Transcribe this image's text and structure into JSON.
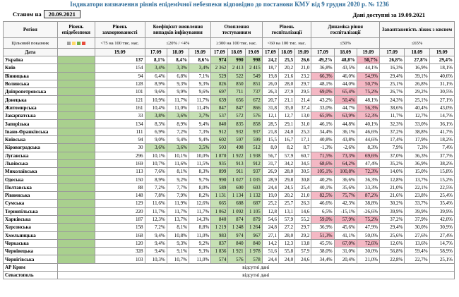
{
  "header": {
    "title": "Індикатори визначення рівнів епідемічної небезпеки відповідно до постанови КМУ від 9 грудня 2020 р. № 1236",
    "as_of_label": "Станом на",
    "as_of_date": "20.09.2021",
    "data_available": "Дані доступні за 19.09.2021"
  },
  "table": {
    "columns": [
      "Регіон",
      "Рівень епідебезпеки",
      "Рівень захворюваності",
      "Коефіцієнт виявлення випадків інфікування",
      "Охоплення тестуванням",
      "Рівень госпіталізації",
      "Динаміка рівня госпіталізації",
      "Завантаженість ліжок з киснем"
    ],
    "target_label": "Цільовий показник",
    "targets": [
      "<75 на 100 тис. нас.",
      "≤20% / <4%",
      "≥300 на 100 тис. нас.",
      "<60 на 100 тис. нас.",
      "≤50%",
      "≤65%"
    ],
    "date_label": "Дата",
    "incidence_date": "19.09",
    "dates": [
      "17.09",
      "18.09",
      "19.09"
    ],
    "level_color": "#a9d08e",
    "rows": [
      {
        "region": "Україна",
        "values": [
          "137",
          "8,1%",
          "8,4%",
          "8,6%",
          "974",
          "990",
          "998",
          "24,2",
          "25,5",
          "26,6",
          "49,2%",
          "48,8%",
          "50,7%",
          "26,8%",
          "27,8%",
          "29,4%"
        ],
        "fills": [
          null,
          null,
          null,
          null,
          "#c6e0b4",
          "#c6e0b4",
          "#c6e0b4",
          null,
          null,
          null,
          null,
          null,
          "#f4b8c4",
          null,
          null,
          null
        ]
      },
      {
        "region": "Київ",
        "values": [
          "154",
          "3,4%",
          "3,3%",
          "3,4%",
          "2 362",
          "2 413",
          "2 415",
          "18,7",
          "20,2",
          "21,0",
          "36,8%",
          "43,5%",
          "44,1%",
          "16,3%",
          "16,9%",
          "18,1%"
        ],
        "fills": [
          null,
          "#c6e0b4",
          "#c6e0b4",
          "#c6e0b4",
          "#c6e0b4",
          "#c6e0b4",
          "#c6e0b4",
          null,
          null,
          null,
          null,
          null,
          null,
          null,
          null,
          null
        ]
      },
      {
        "region": "Вінницька",
        "values": [
          "94",
          "6,4%",
          "6,8%",
          "7,1%",
          "529",
          "522",
          "549",
          "19,8",
          "21,6",
          "23,2",
          "66,3%",
          "46,0%",
          "54,9%",
          "29,4%",
          "39,1%",
          "40,6%"
        ],
        "fills": [
          null,
          null,
          null,
          null,
          "#c6e0b4",
          "#c6e0b4",
          "#c6e0b4",
          null,
          null,
          null,
          "#f4b8c4",
          null,
          "#f4b8c4",
          null,
          null,
          null
        ]
      },
      {
        "region": "Волинська",
        "values": [
          "128",
          "8,9%",
          "9,3%",
          "9,3%",
          "826",
          "850",
          "851",
          "26,0",
          "28,0",
          "29,7",
          "48,1%",
          "44,0%",
          "50,7%",
          "25,1%",
          "26,8%",
          "31,1%"
        ],
        "fills": [
          null,
          null,
          null,
          null,
          "#c6e0b4",
          "#c6e0b4",
          "#c6e0b4",
          null,
          null,
          null,
          null,
          null,
          "#f4b8c4",
          null,
          null,
          null
        ]
      },
      {
        "region": "Дніпропетровська",
        "values": [
          "101",
          "9,6%",
          "9,9%",
          "9,6%",
          "697",
          "711",
          "737",
          "26,3",
          "27,9",
          "29,5",
          "69,0%",
          "65,4%",
          "75,2%",
          "26,7%",
          "29,2%",
          "30,5%"
        ],
        "fills": [
          null,
          null,
          null,
          null,
          "#c6e0b4",
          "#c6e0b4",
          "#c6e0b4",
          null,
          null,
          null,
          "#f4b8c4",
          "#f4b8c4",
          "#f4b8c4",
          null,
          null,
          null
        ]
      },
      {
        "region": "Донецька",
        "values": [
          "121",
          "10,9%",
          "11,7%",
          "11,7%",
          "639",
          "656",
          "672",
          "20,7",
          "21,1",
          "21,4",
          "43,2%",
          "50,4%",
          "48,1%",
          "24,3%",
          "25,1%",
          "27,1%"
        ],
        "fills": [
          null,
          null,
          null,
          null,
          "#c6e0b4",
          "#c6e0b4",
          "#c6e0b4",
          null,
          null,
          null,
          null,
          "#f4b8c4",
          null,
          null,
          null,
          null
        ]
      },
      {
        "region": "Житомирська",
        "values": [
          "161",
          "10,4%",
          "11,0%",
          "11,4%",
          "847",
          "847",
          "866",
          "31,8",
          "35,0",
          "37,4",
          "33,0%",
          "44,7%",
          "56,3%",
          "38,6%",
          "40,4%",
          "43,0%"
        ],
        "fills": [
          null,
          null,
          null,
          null,
          "#c6e0b4",
          "#c6e0b4",
          "#c6e0b4",
          null,
          null,
          null,
          null,
          null,
          "#f4b8c4",
          null,
          null,
          null
        ]
      },
      {
        "region": "Закарпатська",
        "values": [
          "33",
          "3,8%",
          "3,6%",
          "3,7%",
          "537",
          "572",
          "576",
          "12,1",
          "12,7",
          "13,0",
          "65,9%",
          "63,9%",
          "52,3%",
          "11,7%",
          "12,7%",
          "14,7%"
        ],
        "fills": [
          null,
          "#c6e0b4",
          "#c6e0b4",
          "#c6e0b4",
          "#c6e0b4",
          "#c6e0b4",
          "#c6e0b4",
          null,
          null,
          null,
          "#f4b8c4",
          "#f4b8c4",
          "#f4b8c4",
          null,
          null,
          null
        ]
      },
      {
        "region": "Запорізька",
        "values": [
          "134",
          "8,3%",
          "8,9%",
          "9,4%",
          "840",
          "835",
          "858",
          "28,5",
          "29,1",
          "31,0",
          "46,1%",
          "44,8%",
          "40,1%",
          "32,3%",
          "33,0%",
          "36,1%"
        ],
        "fills": [
          null,
          null,
          null,
          null,
          "#c6e0b4",
          "#c6e0b4",
          "#c6e0b4",
          null,
          null,
          null,
          null,
          null,
          null,
          null,
          null,
          null
        ]
      },
      {
        "region": "Івано-Франківська",
        "values": [
          "111",
          "6,9%",
          "7,2%",
          "7,3%",
          "912",
          "932",
          "937",
          "21,8",
          "24,0",
          "25,3",
          "34,4%",
          "36,1%",
          "46,6%",
          "37,2%",
          "38,8%",
          "41,7%"
        ],
        "fills": [
          null,
          null,
          null,
          null,
          "#c6e0b4",
          "#c6e0b4",
          "#c6e0b4",
          null,
          null,
          null,
          null,
          null,
          null,
          null,
          null,
          null
        ]
      },
      {
        "region": "Київська",
        "values": [
          "94",
          "9,0%",
          "9,4%",
          "9,4%",
          "602",
          "597",
          "599",
          "15,5",
          "16,7",
          "17,1",
          "40,8%",
          "43,8%",
          "44,6%",
          "17,4%",
          "17,9%",
          "18,2%"
        ],
        "fills": [
          null,
          null,
          null,
          null,
          "#c6e0b4",
          "#c6e0b4",
          "#c6e0b4",
          null,
          null,
          null,
          null,
          null,
          null,
          null,
          null,
          null
        ]
      },
      {
        "region": "Кіровоградська",
        "values": [
          "30",
          "3,6%",
          "3,6%",
          "3,5%",
          "503",
          "498",
          "512",
          "8,0",
          "8,2",
          "8,7",
          "-1,3%",
          "-2,6%",
          "8,3%",
          "7,9%",
          "7,3%",
          "7,4%"
        ],
        "fills": [
          null,
          "#c6e0b4",
          "#c6e0b4",
          "#c6e0b4",
          "#c6e0b4",
          "#c6e0b4",
          "#c6e0b4",
          null,
          null,
          null,
          null,
          null,
          null,
          null,
          null,
          null
        ]
      },
      {
        "region": "Луганська",
        "values": [
          "296",
          "10,1%",
          "10,1%",
          "10,0%",
          "1 870",
          "1 922",
          "1 938",
          "56,7",
          "57,9",
          "60,7",
          "71,5%",
          "73,3%",
          "69,6%",
          "37,0%",
          "36,3%",
          "37,7%"
        ],
        "fills": [
          null,
          null,
          null,
          null,
          "#c6e0b4",
          "#c6e0b4",
          "#c6e0b4",
          null,
          null,
          null,
          "#f4b8c4",
          "#f4b8c4",
          "#f4b8c4",
          null,
          null,
          null
        ]
      },
      {
        "region": "Львівська",
        "values": [
          "169",
          "10,7%",
          "11,6%",
          "11,5%",
          "935",
          "913",
          "912",
          "31,7",
          "34,2",
          "34,5",
          "68,6%",
          "64,2%",
          "47,4%",
          "35,2%",
          "36,9%",
          "38,2%"
        ],
        "fills": [
          null,
          null,
          null,
          null,
          "#c6e0b4",
          "#c6e0b4",
          "#c6e0b4",
          null,
          null,
          null,
          "#f4b8c4",
          "#f4b8c4",
          null,
          null,
          null,
          null
        ]
      },
      {
        "region": "Миколаївська",
        "values": [
          "113",
          "7,6%",
          "8,1%",
          "8,3%",
          "899",
          "911",
          "937",
          "26,9",
          "28,0",
          "30,5",
          "105,1%",
          "100,8%",
          "72,3%",
          "14,0%",
          "15,0%",
          "15,8%"
        ],
        "fills": [
          null,
          null,
          null,
          null,
          "#c6e0b4",
          "#c6e0b4",
          "#c6e0b4",
          null,
          null,
          null,
          "#f4b8c4",
          "#f4b8c4",
          "#f4b8c4",
          null,
          null,
          null
        ]
      },
      {
        "region": "Одеська",
        "values": [
          "150",
          "8,9%",
          "9,2%",
          "9,7%",
          "990",
          "1 027",
          "1 035",
          "28,9",
          "29,8",
          "30,8",
          "40,2%",
          "36,6%",
          "36,3%",
          "12,8%",
          "13,7%",
          "15,2%"
        ],
        "fills": [
          null,
          null,
          null,
          null,
          "#c6e0b4",
          "#c6e0b4",
          "#c6e0b4",
          null,
          null,
          null,
          null,
          null,
          null,
          null,
          null,
          null
        ]
      },
      {
        "region": "Полтавська",
        "values": [
          "88",
          "7,2%",
          "7,7%",
          "8,0%",
          "589",
          "600",
          "603",
          "24,4",
          "24,5",
          "25,4",
          "40,1%",
          "35,6%",
          "33,3%",
          "21,0%",
          "22,1%",
          "22,5%"
        ],
        "fills": [
          null,
          null,
          null,
          null,
          "#c6e0b4",
          "#c6e0b4",
          "#c6e0b4",
          null,
          null,
          null,
          null,
          null,
          null,
          null,
          null,
          null
        ]
      },
      {
        "region": "Рівненська",
        "values": [
          "148",
          "7,8%",
          "7,9%",
          "8,2%",
          "1 131",
          "1 134",
          "1 132",
          "19,0",
          "20,2",
          "21,0",
          "82,5%",
          "75,7%",
          "87,2%",
          "21,6%",
          "23,8%",
          "25,4%"
        ],
        "fills": [
          null,
          null,
          null,
          null,
          "#c6e0b4",
          "#c6e0b4",
          "#c6e0b4",
          null,
          null,
          null,
          "#f4b8c4",
          "#f4b8c4",
          "#f4b8c4",
          null,
          null,
          null
        ]
      },
      {
        "region": "Сумська",
        "values": [
          "129",
          "11,6%",
          "11,9%",
          "12,6%",
          "665",
          "688",
          "687",
          "25,2",
          "25,7",
          "26,3",
          "46,6%",
          "42,3%",
          "38,8%",
          "30,2%",
          "33,7%",
          "35,4%"
        ],
        "fills": [
          null,
          null,
          null,
          null,
          "#c6e0b4",
          "#c6e0b4",
          "#c6e0b4",
          null,
          null,
          null,
          null,
          null,
          null,
          null,
          null,
          null
        ]
      },
      {
        "region": "Тернопільська",
        "values": [
          "220",
          "11,7%",
          "11,7%",
          "11,7%",
          "1 062",
          "1 092",
          "1 105",
          "12,8",
          "13,1",
          "14,6",
          "6,5%",
          "-15,1%",
          "-26,6%",
          "39,9%",
          "39,9%",
          "39,9%"
        ],
        "fills": [
          null,
          null,
          null,
          null,
          "#c6e0b4",
          "#c6e0b4",
          "#c6e0b4",
          null,
          null,
          null,
          null,
          null,
          null,
          null,
          null,
          null
        ]
      },
      {
        "region": "Харківська",
        "values": [
          "187",
          "12,3%",
          "13,7%",
          "14,3%",
          "840",
          "874",
          "879",
          "54,6",
          "57,9",
          "55,2",
          "59,0%",
          "57,9%",
          "75,2%",
          "37,2%",
          "37,9%",
          "42,0%"
        ],
        "fills": [
          null,
          null,
          null,
          null,
          "#c6e0b4",
          "#c6e0b4",
          "#c6e0b4",
          null,
          null,
          null,
          "#f4b8c4",
          "#f4b8c4",
          "#f4b8c4",
          null,
          null,
          null
        ]
      },
      {
        "region": "Херсонська",
        "values": [
          "158",
          "7,2%",
          "8,1%",
          "8,8%",
          "1 219",
          "1 248",
          "1 264",
          "24,8",
          "27,2",
          "29,7",
          "36,9%",
          "45,6%",
          "47,9%",
          "29,4%",
          "30,0%",
          "30,9%"
        ],
        "fills": [
          null,
          null,
          null,
          null,
          "#c6e0b4",
          "#c6e0b4",
          "#c6e0b4",
          null,
          null,
          null,
          null,
          null,
          null,
          null,
          null,
          null
        ]
      },
      {
        "region": "Хмельницька",
        "values": [
          "168",
          "9,4%",
          "10,8%",
          "11,0%",
          "983",
          "974",
          "967",
          "27,1",
          "28,0",
          "29,2",
          "51,3%",
          "41,1%",
          "50,0%",
          "25,6%",
          "27,6%",
          "27,4%"
        ],
        "fills": [
          null,
          null,
          null,
          null,
          "#c6e0b4",
          "#c6e0b4",
          "#c6e0b4",
          null,
          null,
          null,
          "#f4b8c4",
          null,
          null,
          null,
          null,
          null
        ]
      },
      {
        "region": "Черкаська",
        "values": [
          "120",
          "9,4%",
          "9,3%",
          "9,2%",
          "837",
          "840",
          "840",
          "14,2",
          "12,3",
          "13,8",
          "45,5%",
          "67,0%",
          "72,6%",
          "12,6%",
          "13,6%",
          "14,7%"
        ],
        "fills": [
          null,
          null,
          null,
          null,
          "#c6e0b4",
          "#c6e0b4",
          "#c6e0b4",
          null,
          null,
          null,
          null,
          "#f4b8c4",
          "#f4b8c4",
          null,
          null,
          null
        ]
      },
      {
        "region": "Чернівецька",
        "values": [
          "328",
          "9,4%",
          "9,1%",
          "9,3%",
          "1 836",
          "1 921",
          "1 978",
          "51,6",
          "55,8",
          "57,9",
          "38,0%",
          "31,0%",
          "30,0%",
          "56,8%",
          "59,4%",
          "58,9%"
        ],
        "fills": [
          null,
          null,
          null,
          null,
          "#c6e0b4",
          "#c6e0b4",
          "#c6e0b4",
          null,
          null,
          null,
          null,
          null,
          null,
          null,
          null,
          null
        ]
      },
      {
        "region": "Чернігівська",
        "values": [
          "103",
          "10,3%",
          "10,7%",
          "11,0%",
          "574",
          "576",
          "578",
          "24,4",
          "24,0",
          "24,6",
          "34,4%",
          "20,4%",
          "21,0%",
          "22,8%",
          "22,7%",
          "25,1%"
        ],
        "fills": [
          null,
          null,
          null,
          null,
          "#c6e0b4",
          "#c6e0b4",
          "#c6e0b4",
          null,
          null,
          null,
          null,
          null,
          null,
          null,
          null,
          null
        ]
      }
    ],
    "no_data_rows": [
      {
        "region": "АР Крим",
        "text": "відсутні дані"
      },
      {
        "region": "Севастополь",
        "text": "відсутні дані"
      }
    ]
  }
}
